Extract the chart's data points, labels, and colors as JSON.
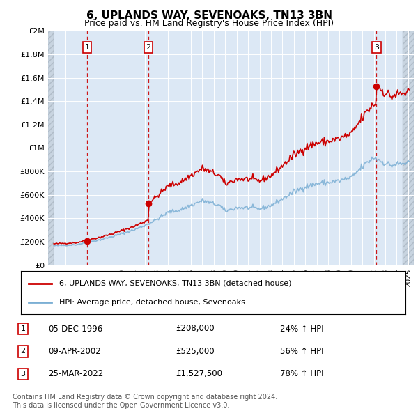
{
  "title": "6, UPLANDS WAY, SEVENOAKS, TN13 3BN",
  "subtitle": "Price paid vs. HM Land Registry's House Price Index (HPI)",
  "ylabel_ticks": [
    "£0",
    "£200K",
    "£400K",
    "£600K",
    "£800K",
    "£1M",
    "£1.2M",
    "£1.4M",
    "£1.6M",
    "£1.8M",
    "£2M"
  ],
  "ytick_values": [
    0,
    200000,
    400000,
    600000,
    800000,
    1000000,
    1200000,
    1400000,
    1600000,
    1800000,
    2000000
  ],
  "xmin": 1993.5,
  "xmax": 2025.5,
  "ymin": 0,
  "ymax": 2000000,
  "purchases": [
    {
      "num": 1,
      "year": 1996.92,
      "price": 208000,
      "date": "05-DEC-1996",
      "pct": "24%",
      "label": "£208,000"
    },
    {
      "num": 2,
      "year": 2002.27,
      "price": 525000,
      "date": "09-APR-2002",
      "pct": "56%",
      "label": "£525,000"
    },
    {
      "num": 3,
      "year": 2022.23,
      "price": 1527500,
      "date": "25-MAR-2022",
      "pct": "78%",
      "label": "£1,527,500"
    }
  ],
  "legend_line1": "6, UPLANDS WAY, SEVENOAKS, TN13 3BN (detached house)",
  "legend_line2": "HPI: Average price, detached house, Sevenoaks",
  "footnote1": "Contains HM Land Registry data © Crown copyright and database right 2024.",
  "footnote2": "This data is licensed under the Open Government Licence v3.0.",
  "red_line_color": "#cc0000",
  "blue_line_color": "#7bafd4",
  "bg_color": "#dce8f5",
  "grid_color": "#ffffff",
  "box_color": "#cc0000",
  "hatch_bg": "#d0d8e0"
}
